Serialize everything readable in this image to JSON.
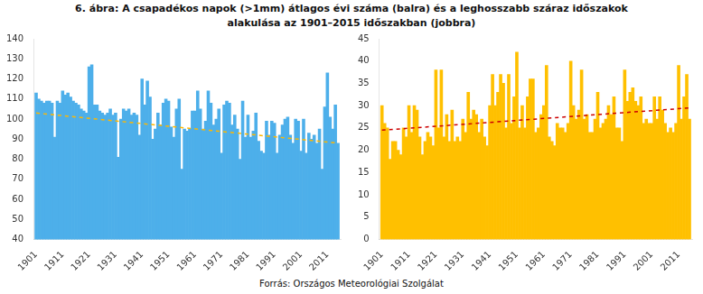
{
  "title": [
    "6. ábra: A csapadékos napok (>1mm) átlagos évi száma (balra) és a leghosszabb száraz időszakok",
    "alakulása az 1901–2015 időszakban (jobbra)"
  ],
  "annotations": [
    "Forrás: Országos Meteorológiai Szolgálat"
  ],
  "chart_data": [
    {
      "type": "bar",
      "x": [
        1901,
        1902,
        1903,
        1904,
        1905,
        1906,
        1907,
        1908,
        1909,
        1910,
        1911,
        1912,
        1913,
        1914,
        1915,
        1916,
        1917,
        1918,
        1919,
        1920,
        1921,
        1922,
        1923,
        1924,
        1925,
        1926,
        1927,
        1928,
        1929,
        1930,
        1931,
        1932,
        1933,
        1934,
        1935,
        1936,
        1937,
        1938,
        1939,
        1940,
        1941,
        1942,
        1943,
        1944,
        1945,
        1946,
        1947,
        1948,
        1949,
        1950,
        1951,
        1952,
        1953,
        1954,
        1955,
        1956,
        1957,
        1958,
        1959,
        1960,
        1961,
        1962,
        1963,
        1964,
        1965,
        1966,
        1967,
        1968,
        1969,
        1970,
        1971,
        1972,
        1973,
        1974,
        1975,
        1976,
        1977,
        1978,
        1979,
        1980,
        1981,
        1982,
        1983,
        1984,
        1985,
        1986,
        1987,
        1988,
        1989,
        1990,
        1991,
        1992,
        1993,
        1994,
        1995,
        1996,
        1997,
        1998,
        1999,
        2000,
        2001,
        2002,
        2003,
        2004,
        2005,
        2006,
        2007,
        2008,
        2009,
        2010,
        2011,
        2012,
        2013,
        2014,
        2015
      ],
      "series": [
        {
          "type": "bar",
          "color": "#4DAFEA",
          "values": [
            113,
            110,
            109,
            108,
            109,
            109,
            108,
            91,
            109,
            108,
            114,
            112,
            113,
            111,
            109,
            108,
            107,
            105,
            104,
            103,
            126,
            127,
            107,
            107,
            104,
            103,
            102,
            103,
            105,
            102,
            103,
            81,
            100,
            105,
            104,
            105,
            102,
            103,
            102,
            92,
            120,
            107,
            119,
            111,
            90,
            95,
            103,
            97,
            108,
            110,
            109,
            96,
            91,
            105,
            110,
            75,
            95,
            94,
            95,
            104,
            104,
            114,
            105,
            95,
            99,
            114,
            108,
            97,
            100,
            105,
            83,
            107,
            109,
            108,
            97,
            102,
            95,
            80,
            109,
            91,
            102,
            91,
            94,
            103,
            89,
            84,
            83,
            99,
            92,
            99,
            98,
            83,
            92,
            97,
            100,
            101,
            92,
            88,
            100,
            99,
            84,
            100,
            83,
            93,
            90,
            92,
            88,
            95,
            75,
            106,
            123,
            101,
            95,
            107,
            88
          ]
        },
        {
          "type": "line",
          "color": "#FFB700",
          "line_style": "dashed",
          "x": [
            1901,
            2015
          ],
          "values": [
            103.0,
            88.0
          ]
        }
      ],
      "xlim": [
        1900.0,
        2016.0
      ],
      "xticks": [
        1901,
        1911,
        1921,
        1931,
        1941,
        1951,
        1961,
        1971,
        1981,
        1991,
        2001,
        2011
      ],
      "ylim": [
        40,
        140
      ],
      "yticks": [
        40,
        50,
        60,
        70,
        80,
        90,
        100,
        110,
        120,
        130,
        140
      ],
      "grid": false
    },
    {
      "type": "bar",
      "x": [
        1901,
        1902,
        1903,
        1904,
        1905,
        1906,
        1907,
        1908,
        1909,
        1910,
        1911,
        1912,
        1913,
        1914,
        1915,
        1916,
        1917,
        1918,
        1919,
        1920,
        1921,
        1922,
        1923,
        1924,
        1925,
        1926,
        1927,
        1928,
        1929,
        1930,
        1931,
        1932,
        1933,
        1934,
        1935,
        1936,
        1937,
        1938,
        1939,
        1940,
        1941,
        1942,
        1943,
        1944,
        1945,
        1946,
        1947,
        1948,
        1949,
        1950,
        1951,
        1952,
        1953,
        1954,
        1955,
        1956,
        1957,
        1958,
        1959,
        1960,
        1961,
        1962,
        1963,
        1964,
        1965,
        1966,
        1967,
        1968,
        1969,
        1970,
        1971,
        1972,
        1973,
        1974,
        1975,
        1976,
        1977,
        1978,
        1979,
        1980,
        1981,
        1982,
        1983,
        1984,
        1985,
        1986,
        1987,
        1988,
        1989,
        1990,
        1991,
        1992,
        1993,
        1994,
        1995,
        1996,
        1997,
        1998,
        1999,
        2000,
        2001,
        2002,
        2003,
        2004,
        2005,
        2006,
        2007,
        2008,
        2009,
        2010,
        2011,
        2012,
        2013,
        2014,
        2015
      ],
      "series": [
        {
          "type": "bar",
          "color": "#FFC000",
          "values": [
            30,
            26,
            25,
            18,
            22,
            22,
            20,
            19,
            25,
            23,
            30,
            24,
            30,
            29,
            23,
            19,
            22,
            24,
            23,
            21,
            38,
            25,
            38,
            23,
            28,
            22,
            29,
            22,
            23,
            22,
            27,
            24,
            33,
            27,
            29,
            28,
            24,
            27,
            23,
            21,
            30,
            37,
            30,
            33,
            37,
            35,
            25,
            37,
            26,
            32,
            42,
            25,
            30,
            25,
            32,
            36,
            36,
            24,
            25,
            28,
            30,
            39,
            23,
            22,
            21,
            26,
            25,
            25,
            24,
            26,
            40,
            30,
            27,
            29,
            38,
            27,
            28,
            24,
            24,
            27,
            33,
            25,
            26,
            27,
            30,
            28,
            32,
            25,
            25,
            22,
            38,
            31,
            33,
            34,
            31,
            30,
            32,
            26,
            27,
            26,
            26,
            32,
            27,
            32,
            29,
            26,
            24,
            25,
            24,
            26,
            39,
            27,
            32,
            37,
            27
          ]
        },
        {
          "type": "line",
          "color": "#CC0000",
          "line_style": "dashed",
          "x": [
            1901,
            2015
          ],
          "values": [
            24.5,
            29.5
          ]
        }
      ],
      "xlim": [
        1900.0,
        2016.0
      ],
      "xticks": [
        1901,
        1911,
        1921,
        1931,
        1941,
        1951,
        1961,
        1971,
        1981,
        1991,
        2001,
        2011
      ],
      "ylim": [
        0,
        45
      ],
      "yticks": [
        0,
        5,
        10,
        15,
        20,
        25,
        30,
        35,
        40,
        45
      ],
      "grid": false
    }
  ]
}
